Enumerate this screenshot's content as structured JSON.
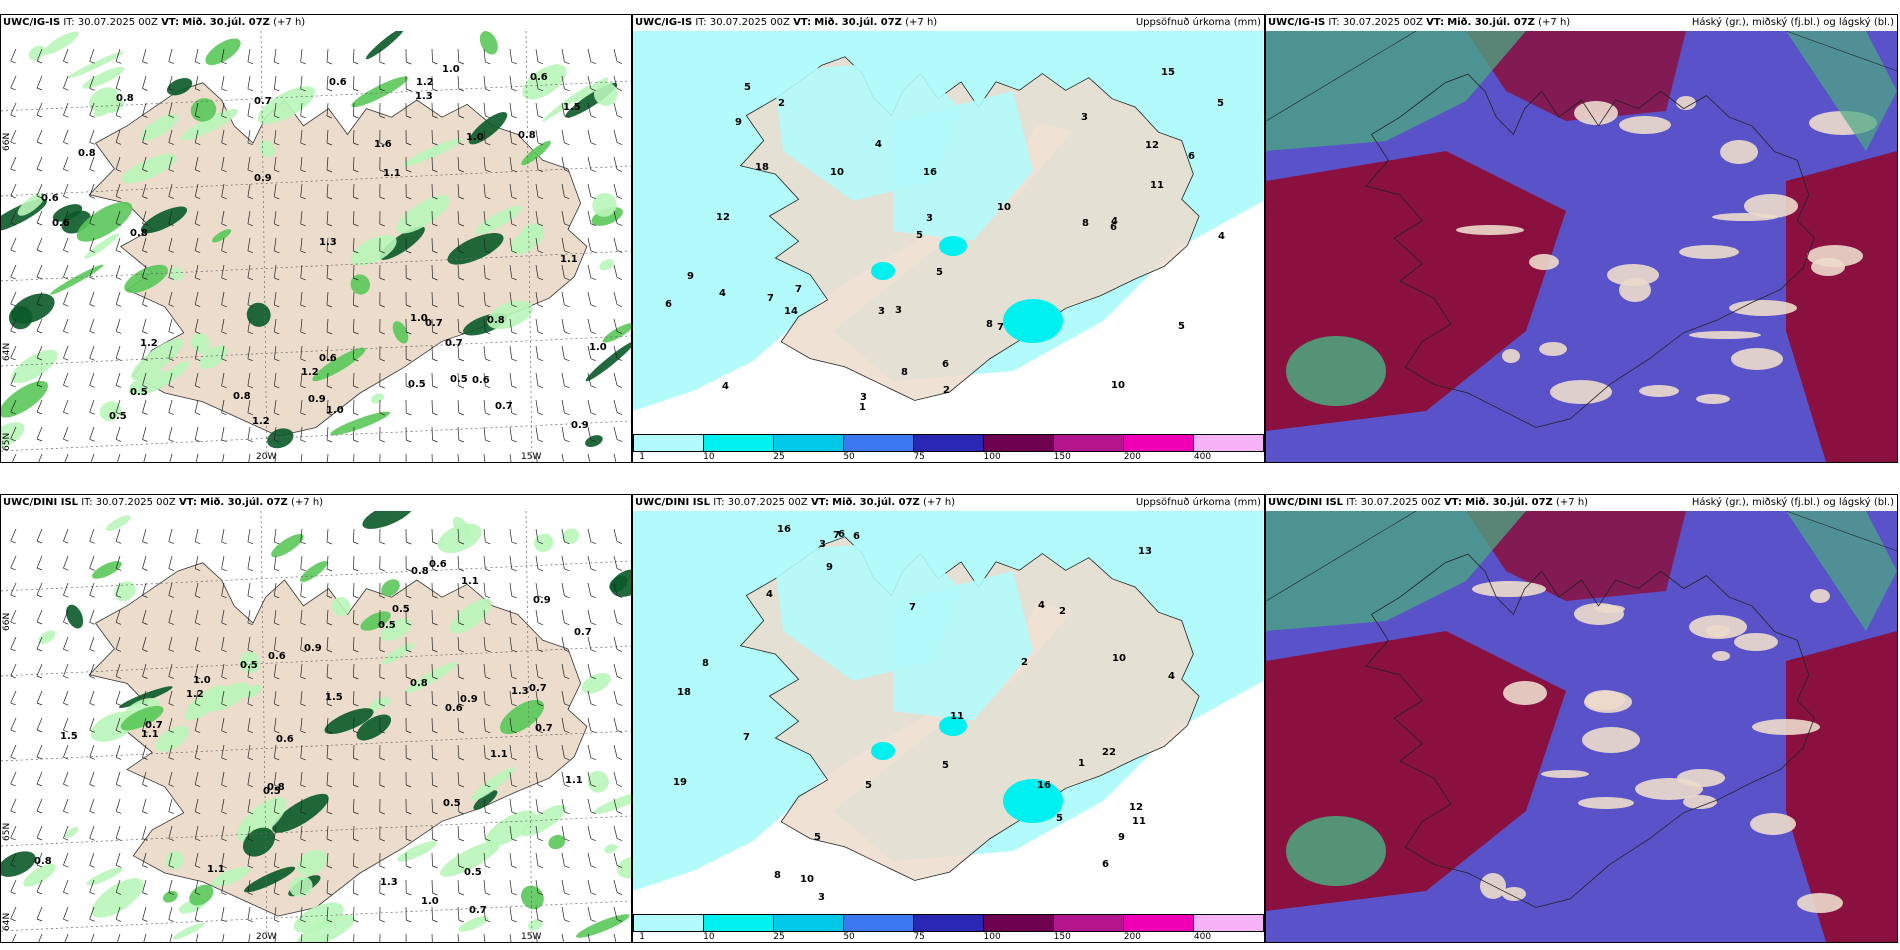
{
  "panels": [
    {
      "model": "UWC/IG-IS",
      "it_label": "IT:",
      "it_value": "30.07.2025 00Z",
      "vt_label": "VT:",
      "vt_value": "Mið. 30.júl. 07Z",
      "lead": "(+7 h)",
      "right_title": "",
      "lat_labels": [
        "66N",
        "64N",
        "65N"
      ],
      "lon_labels": [
        "20W",
        "15W"
      ],
      "labels": [
        "1.0",
        "1.0",
        "0.8",
        "0.6",
        "0.9",
        "0.8",
        "1.2",
        "1.5",
        "0.7",
        "1.1",
        "0.8",
        "1.2",
        "0.5",
        "0.6",
        "1.0",
        "0.8",
        "1.3",
        "1.2",
        "0.9",
        "0.6",
        "1.1",
        "0.5",
        "1.0",
        "0.7",
        "0.6",
        "1.0",
        "0.5",
        "0.8",
        "0.5",
        "1.6",
        "0.7",
        "0.9",
        "0.6",
        "0.7",
        "1.2",
        "0.6",
        "1.3",
        "0.8"
      ]
    },
    {
      "model": "UWC/IG-IS",
      "it_label": "IT:",
      "it_value": "30.07.2025 00Z",
      "vt_label": "VT:",
      "vt_value": "Mið. 30.júl. 07Z",
      "lead": "(+7 h)",
      "right_title": "Uppsöfnuð úrkoma (mm)",
      "labels": [
        "8",
        "10",
        "4",
        "5",
        "6",
        "4",
        "5",
        "7",
        "3",
        "4",
        "14",
        "2",
        "3",
        "6",
        "4",
        "5",
        "7",
        "16",
        "12",
        "10",
        "8",
        "9",
        "7",
        "6",
        "3",
        "5",
        "8",
        "18",
        "15",
        "12",
        "11",
        "2",
        "1",
        "3",
        "4",
        "10",
        "5",
        "9",
        "6",
        "3"
      ]
    },
    {
      "model": "UWC/IG-IS",
      "it_label": "IT:",
      "it_value": "30.07.2025 00Z",
      "vt_label": "VT:",
      "vt_value": "Mið. 30.júl. 07Z",
      "lead": "(+7 h)",
      "right_title": "Háský (gr.), miðský (fj.bl.) og lágský (bl.)"
    },
    {
      "model": "UWC/DINI ISL",
      "it_label": "IT:",
      "it_value": "30.07.2025 00Z",
      "vt_label": "VT:",
      "vt_value": "Mið. 30.júl. 07Z",
      "lead": "(+7 h)",
      "right_title": "",
      "lat_labels": [
        "66N",
        "65N",
        "64N"
      ],
      "lon_labels": [
        "20W",
        "15W"
      ],
      "labels": [
        "1.1",
        "0.8",
        "1.1",
        "1.1",
        "0.6",
        "1.1",
        "0.8",
        "1.2",
        "0.9",
        "1.3",
        "0.7",
        "0.5",
        "1.0",
        "1.3",
        "0.5",
        "1.5",
        "0.7",
        "0.5",
        "0.8",
        "0.6",
        "0.7",
        "0.9",
        "0.6",
        "0.5",
        "1.0",
        "0.7",
        "0.9",
        "0.5",
        "0.6",
        "1.5",
        "1.1",
        "0.5",
        "0.8",
        "0.7"
      ]
    },
    {
      "model": "UWC/DINI ISL",
      "it_label": "IT:",
      "it_value": "30.07.2025 00Z",
      "vt_label": "VT:",
      "vt_value": "Mið. 30.júl. 07Z",
      "lead": "(+7 h)",
      "right_title": "Uppsöfnuð úrkoma (mm)",
      "labels": [
        "7",
        "6",
        "10",
        "5",
        "4",
        "16",
        "11",
        "3",
        "2",
        "7",
        "5",
        "19",
        "18",
        "22",
        "16",
        "12",
        "13",
        "5",
        "9",
        "4",
        "8",
        "6",
        "10",
        "2",
        "1",
        "3",
        "5",
        "6",
        "7",
        "9",
        "11",
        "4",
        "8"
      ]
    },
    {
      "model": "UWC/DINI ISL",
      "it_label": "IT:",
      "it_value": "30.07.2025 00Z",
      "vt_label": "VT:",
      "vt_value": "Mið. 30.júl. 07Z",
      "lead": "(+7 h)",
      "right_title": "Háský (gr.), miðský (fj.bl.) og lágský (bl.)"
    }
  ],
  "colorbar": {
    "ticks": [
      "1",
      "10",
      "25",
      "50",
      "75",
      "100",
      "150",
      "200",
      "400"
    ],
    "colors": [
      "#b3fbfb",
      "#00f0f0",
      "#00c8e6",
      "#3c78f0",
      "#2828b4",
      "#6e0050",
      "#b4148c",
      "#f000b4",
      "#f5b4f5"
    ]
  },
  "colors": {
    "land": "#ecdccc",
    "precip_light": "#b9f5b9",
    "precip_mid": "#5ac85a",
    "precip_dark": "#0a5a28",
    "high_cloud": "#4aaa80",
    "mid_cloud": "#8a1040",
    "low_cloud": "#5a52c8"
  }
}
